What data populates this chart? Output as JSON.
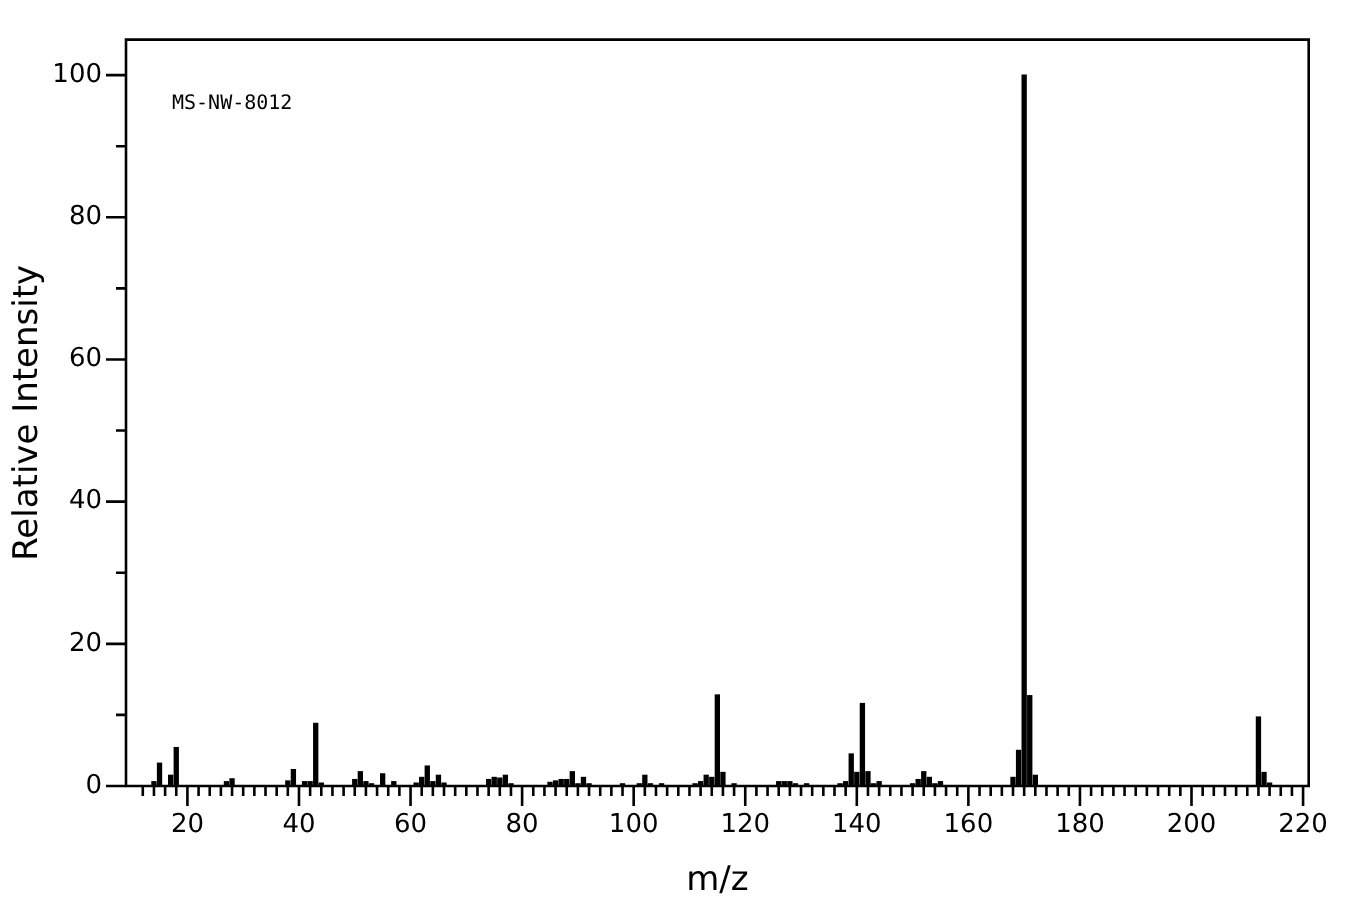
{
  "chart_data": {
    "type": "bar",
    "xlabel": "m/z",
    "ylabel": "Relative Intensity",
    "annotations": [
      "MS-NW-8012"
    ],
    "x": [
      14,
      15,
      17,
      18,
      27,
      28,
      38,
      39,
      41,
      42,
      43,
      44,
      50,
      51,
      52,
      53,
      55,
      57,
      61,
      62,
      63,
      64,
      65,
      66,
      74,
      75,
      76,
      77,
      78,
      85,
      86,
      87,
      88,
      89,
      90,
      91,
      92,
      98,
      101,
      102,
      103,
      105,
      111,
      112,
      113,
      114,
      115,
      116,
      118,
      126,
      127,
      128,
      129,
      131,
      137,
      138,
      139,
      140,
      141,
      142,
      143,
      144,
      150,
      151,
      152,
      153,
      154,
      155,
      168,
      169,
      170,
      171,
      172,
      212,
      213,
      214
    ],
    "values": [
      0.6,
      3.2,
      1.5,
      5.4,
      0.6,
      1.0,
      0.7,
      2.3,
      0.6,
      0.6,
      8.8,
      0.4,
      0.9,
      2.0,
      0.6,
      0.3,
      1.7,
      0.6,
      0.4,
      1.2,
      2.8,
      0.6,
      1.5,
      0.4,
      0.9,
      1.2,
      1.1,
      1.5,
      0.3,
      0.5,
      0.7,
      0.9,
      0.9,
      2.0,
      0.3,
      1.2,
      0.3,
      0.3,
      0.3,
      1.5,
      0.3,
      0.3,
      0.3,
      0.6,
      1.5,
      1.2,
      12.8,
      1.9,
      0.3,
      0.6,
      0.6,
      0.6,
      0.3,
      0.3,
      0.3,
      0.6,
      4.5,
      1.9,
      11.6,
      2.0,
      0.3,
      0.6,
      0.3,
      0.9,
      2.0,
      1.2,
      0.3,
      0.6,
      1.2,
      5.0,
      100,
      12.7,
      1.5,
      9.7,
      1.9,
      0.4
    ],
    "color": "#000000",
    "xlim": [
      10,
      220
    ],
    "xticks": [
      {
        "value": 12,
        "label": null
      },
      {
        "value": 14,
        "label": null
      },
      {
        "value": 16,
        "label": null
      },
      {
        "value": 18,
        "label": null
      },
      20,
      {
        "value": 22,
        "label": null
      },
      {
        "value": 24,
        "label": null
      },
      {
        "value": 26,
        "label": null
      },
      {
        "value": 28,
        "label": null
      },
      {
        "value": 30,
        "label": null
      },
      {
        "value": 32,
        "label": null
      },
      {
        "value": 34,
        "label": null
      },
      {
        "value": 36,
        "label": null
      },
      {
        "value": 38,
        "label": null
      },
      40,
      {
        "value": 42,
        "label": null
      },
      {
        "value": 44,
        "label": null
      },
      {
        "value": 46,
        "label": null
      },
      {
        "value": 48,
        "label": null
      },
      {
        "value": 50,
        "label": null
      },
      {
        "value": 52,
        "label": null
      },
      {
        "value": 54,
        "label": null
      },
      {
        "value": 56,
        "label": null
      },
      {
        "value": 58,
        "label": null
      },
      60,
      {
        "value": 62,
        "label": null
      },
      {
        "value": 64,
        "label": null
      },
      {
        "value": 66,
        "label": null
      },
      {
        "value": 68,
        "label": null
      },
      {
        "value": 70,
        "label": null
      },
      {
        "value": 72,
        "label": null
      },
      {
        "value": 74,
        "label": null
      },
      {
        "value": 76,
        "label": null
      },
      {
        "value": 78,
        "label": null
      },
      80,
      {
        "value": 82,
        "label": null
      },
      {
        "value": 84,
        "label": null
      },
      {
        "value": 86,
        "label": null
      },
      {
        "value": 88,
        "label": null
      },
      {
        "value": 90,
        "label": null
      },
      {
        "value": 92,
        "label": null
      },
      {
        "value": 94,
        "label": null
      },
      {
        "value": 96,
        "label": null
      },
      {
        "value": 98,
        "label": null
      },
      100,
      {
        "value": 102,
        "label": null
      },
      {
        "value": 104,
        "label": null
      },
      {
        "value": 106,
        "label": null
      },
      {
        "value": 108,
        "label": null
      },
      {
        "value": 110,
        "label": null
      },
      {
        "value": 112,
        "label": null
      },
      {
        "value": 114,
        "label": null
      },
      {
        "value": 116,
        "label": null
      },
      {
        "value": 118,
        "label": null
      },
      120,
      {
        "value": 122,
        "label": null
      },
      {
        "value": 124,
        "label": null
      },
      {
        "value": 126,
        "label": null
      },
      {
        "value": 128,
        "label": null
      },
      {
        "value": 130,
        "label": null
      },
      {
        "value": 132,
        "label": null
      },
      {
        "value": 134,
        "label": null
      },
      {
        "value": 136,
        "label": null
      },
      {
        "value": 138,
        "label": null
      },
      140,
      {
        "value": 142,
        "label": null
      },
      {
        "value": 144,
        "label": null
      },
      {
        "value": 146,
        "label": null
      },
      {
        "value": 148,
        "label": null
      },
      {
        "value": 150,
        "label": null
      },
      {
        "value": 152,
        "label": null
      },
      {
        "value": 154,
        "label": null
      },
      {
        "value": 156,
        "label": null
      },
      {
        "value": 158,
        "label": null
      },
      160,
      {
        "value": 162,
        "label": null
      },
      {
        "value": 164,
        "label": null
      },
      {
        "value": 166,
        "label": null
      },
      {
        "value": 168,
        "label": null
      },
      {
        "value": 170,
        "label": null
      },
      {
        "value": 172,
        "label": null
      },
      {
        "value": 174,
        "label": null
      },
      {
        "value": 176,
        "label": null
      },
      {
        "value": 178,
        "label": null
      },
      180,
      {
        "value": 182,
        "label": null
      },
      {
        "value": 184,
        "label": null
      },
      {
        "value": 186,
        "label": null
      },
      {
        "value": 188,
        "label": null
      },
      {
        "value": 190,
        "label": null
      },
      {
        "value": 192,
        "label": null
      },
      {
        "value": 194,
        "label": null
      },
      {
        "value": 196,
        "label": null
      },
      {
        "value": 198,
        "label": null
      },
      200,
      {
        "value": 202,
        "label": null
      },
      {
        "value": 204,
        "label": null
      },
      {
        "value": 206,
        "label": null
      },
      {
        "value": 208,
        "label": null
      },
      {
        "value": 210,
        "label": null
      },
      {
        "value": 212,
        "label": null
      },
      {
        "value": 214,
        "label": null
      },
      {
        "value": 216,
        "label": null
      },
      {
        "value": 218,
        "label": null
      },
      220
    ],
    "ylim": [
      0,
      105
    ],
    "yticks": [
      0,
      {
        "value": 10,
        "label": null
      },
      20,
      {
        "value": 30,
        "label": null
      },
      40,
      {
        "value": 50,
        "label": null
      },
      60,
      {
        "value": 70,
        "label": null
      },
      80,
      {
        "value": 90,
        "label": null
      },
      100
    ],
    "grid": false,
    "legend": false
  }
}
